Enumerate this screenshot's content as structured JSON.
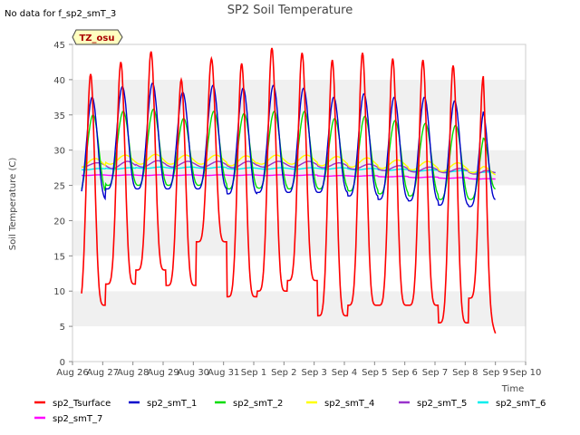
{
  "header": {
    "no_data_note": "No data for f_sp2_smT_3",
    "title": "SP2 Soil Temperature"
  },
  "badge": {
    "label": "TZ_osu"
  },
  "colors": {
    "sp2_Tsurface": "#ff0000",
    "sp2_smT_1": "#0000cc",
    "sp2_smT_2": "#00dd00",
    "sp2_smT_4": "#ffff00",
    "sp2_smT_5": "#9933cc",
    "sp2_smT_6": "#00eeee",
    "sp2_smT_7": "#ff00ff"
  },
  "chart_data": {
    "type": "line",
    "title": "SP2 Soil Temperature",
    "xlabel": "Time",
    "ylabel": "Soil Temperature (C)",
    "ylim": [
      0,
      45
    ],
    "xlim": [
      0,
      15
    ],
    "yticks": [
      0,
      5,
      10,
      15,
      20,
      25,
      30,
      35,
      40,
      45
    ],
    "categories": [
      "Aug 26",
      "Aug 27",
      "Aug 28",
      "Aug 29",
      "Aug 30",
      "Aug 31",
      "Sep 1",
      "Sep 2",
      "Sep 3",
      "Sep 4",
      "Sep 5",
      "Sep 6",
      "Sep 7",
      "Sep 8",
      "Sep 9",
      "Sep 10"
    ],
    "legend_position": "bottom",
    "days": [
      0.6,
      1.6,
      2.6,
      3.6,
      4.6,
      5.6,
      6.6,
      7.6,
      8.6,
      9.6,
      10.6,
      11.6,
      12.6,
      13.6
    ],
    "series": [
      {
        "name": "sp2_Tsurface",
        "min": [
          8.0,
          11.0,
          13.0,
          10.8,
          17.0,
          9.2,
          10.0,
          11.5,
          6.5,
          8.0,
          8.0,
          8.0,
          5.5,
          9.0
        ],
        "max": [
          40.8,
          42.5,
          44.0,
          40.0,
          43.0,
          42.3,
          44.5,
          43.8,
          42.8,
          43.8,
          43.0,
          42.8,
          42.0,
          40.5
        ],
        "end_value": 4.0
      },
      {
        "name": "sp2_smT_1",
        "min": [
          23.0,
          24.5,
          24.5,
          24.5,
          24.5,
          23.8,
          24.0,
          24.0,
          24.0,
          23.5,
          23.0,
          22.8,
          22.2,
          22.0
        ],
        "max": [
          37.5,
          39.0,
          39.5,
          38.2,
          39.2,
          38.8,
          39.2,
          38.8,
          37.5,
          38.0,
          37.5,
          37.5,
          37.0,
          36.0
        ],
        "end_value": 23.0
      },
      {
        "name": "sp2_smT_2",
        "min": [
          23.8,
          25.0,
          25.0,
          25.0,
          25.0,
          24.5,
          24.6,
          24.5,
          24.5,
          24.2,
          23.8,
          23.5,
          23.0,
          23.0
        ],
        "max": [
          35.0,
          35.5,
          35.8,
          34.5,
          35.5,
          35.2,
          35.5,
          35.5,
          34.5,
          34.8,
          34.2,
          33.8,
          33.5,
          32.5
        ],
        "end_value": 24.5
      },
      {
        "name": "sp2_smT_4",
        "min": [
          27.5,
          28.0,
          28.0,
          28.0,
          28.0,
          27.8,
          28.0,
          28.0,
          27.8,
          27.6,
          27.4,
          27.2,
          27.0,
          26.8
        ],
        "max": [
          28.8,
          29.3,
          29.4,
          29.3,
          29.3,
          29.2,
          29.3,
          29.3,
          29.1,
          28.9,
          28.6,
          28.4,
          28.2,
          27.9
        ],
        "end_value": 26.5
      },
      {
        "name": "sp2_smT_5",
        "min": [
          27.6,
          27.4,
          27.6,
          27.6,
          27.6,
          27.5,
          27.6,
          27.6,
          27.5,
          27.3,
          27.1,
          26.9,
          26.8,
          26.6
        ],
        "max": [
          28.2,
          28.4,
          28.5,
          28.4,
          28.4,
          28.4,
          28.4,
          28.4,
          28.2,
          28.0,
          27.8,
          27.6,
          27.4,
          27.3
        ],
        "end_value": 26.8
      },
      {
        "name": "sp2_smT_6",
        "min": [
          27.2,
          27.3,
          27.4,
          27.4,
          27.4,
          27.3,
          27.3,
          27.3,
          27.3,
          27.2,
          27.1,
          27.0,
          26.9,
          26.8
        ],
        "max": [
          27.4,
          27.5,
          27.6,
          27.6,
          27.6,
          27.5,
          27.5,
          27.5,
          27.5,
          27.4,
          27.3,
          27.2,
          27.1,
          27.0
        ],
        "end_value": 26.8
      },
      {
        "name": "sp2_smT_7",
        "min": [
          26.4,
          26.4,
          26.4,
          26.4,
          26.4,
          26.4,
          26.4,
          26.4,
          26.3,
          26.3,
          26.2,
          26.1,
          26.0,
          25.9
        ],
        "max": [
          26.5,
          26.5,
          26.5,
          26.5,
          26.5,
          26.5,
          26.5,
          26.5,
          26.4,
          26.4,
          26.3,
          26.2,
          26.1,
          26.0
        ],
        "end_value": 25.9
      }
    ]
  }
}
